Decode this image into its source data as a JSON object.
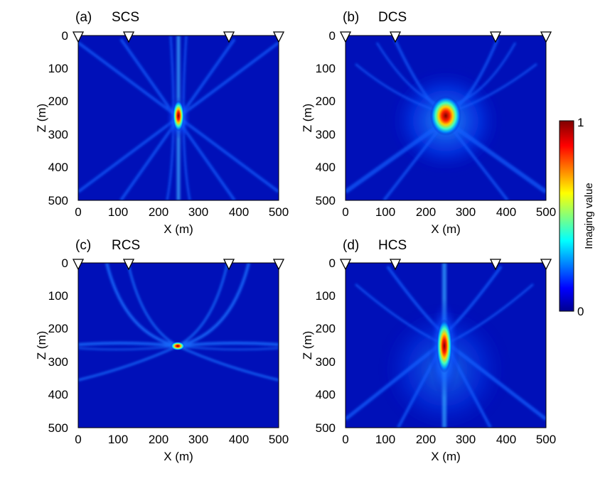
{
  "chart_data": [
    {
      "type": "heatmap",
      "panel": "(a)",
      "title": "SCS",
      "xlabel": "X (m)",
      "ylabel": "Z (m)",
      "xlim": [
        0,
        500
      ],
      "ylim": [
        0,
        500
      ],
      "y_reversed": true,
      "xticks": [
        "0",
        "100",
        "200",
        "300",
        "400",
        "500"
      ],
      "yticks": [
        "0",
        "100",
        "200",
        "300",
        "400",
        "500"
      ],
      "receivers_x": [
        0,
        125,
        375,
        500
      ],
      "focus": {
        "x": 250,
        "z": 250,
        "value": 1.0
      },
      "description_curves": "narrow vertical beams near x=250 and crossing diagonal beams"
    },
    {
      "type": "heatmap",
      "panel": "(b)",
      "title": "DCS",
      "xlabel": "X (m)",
      "ylabel": "Z (m)",
      "xlim": [
        0,
        500
      ],
      "ylim": [
        0,
        500
      ],
      "y_reversed": true,
      "xticks": [
        "0",
        "100",
        "200",
        "300",
        "400",
        "500"
      ],
      "yticks": [
        "0",
        "100",
        "200",
        "300",
        "400",
        "500"
      ],
      "receivers_x": [
        0,
        125,
        375,
        500
      ],
      "focus": {
        "x": 250,
        "z": 250,
        "value": 1.0
      }
    },
    {
      "type": "heatmap",
      "panel": "(c)",
      "title": "RCS",
      "xlabel": "X (m)",
      "ylabel": "Z (m)",
      "xlim": [
        0,
        500
      ],
      "ylim": [
        0,
        500
      ],
      "y_reversed": true,
      "xticks": [
        "0",
        "100",
        "200",
        "300",
        "400",
        "500"
      ],
      "yticks": [
        "0",
        "100",
        "200",
        "300",
        "400",
        "500"
      ],
      "receivers_x": [
        0,
        125,
        375,
        500
      ],
      "focus": {
        "x": 250,
        "z": 250,
        "value": 1.0
      }
    },
    {
      "type": "heatmap",
      "panel": "(d)",
      "title": "HCS",
      "xlabel": "X (m)",
      "ylabel": "Z (m)",
      "xlim": [
        0,
        500
      ],
      "ylim": [
        0,
        500
      ],
      "y_reversed": true,
      "xticks": [
        "0",
        "100",
        "200",
        "300",
        "400",
        "500"
      ],
      "yticks": [
        "0",
        "100",
        "200",
        "300",
        "400",
        "500"
      ],
      "receivers_x": [
        0,
        125,
        375,
        500
      ],
      "focus": {
        "x": 250,
        "z": 250,
        "value": 1.0
      }
    }
  ],
  "colorbar": {
    "label": "Imaging value",
    "min_label": "0",
    "max_label": "1",
    "colormap": "jet"
  },
  "colors": {
    "background_low": "#000a8f",
    "peak": "#7f0000"
  }
}
